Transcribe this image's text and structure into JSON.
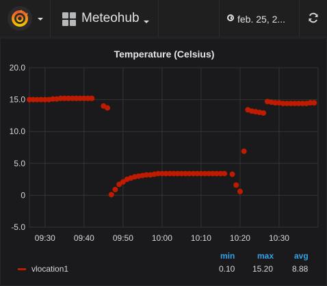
{
  "topbar": {
    "dashboard_title": "Meteohub",
    "time_range": "feb. 25, 2...",
    "icons": {
      "logo": "grafana-logo-icon",
      "dashboards": "grid-icon",
      "clock": "clock-icon",
      "refresh": "refresh-icon"
    }
  },
  "panel": {
    "title": "Temperature (Celsius)"
  },
  "chart_data": {
    "type": "scatter",
    "title": "Temperature (Celsius)",
    "xlabel": "",
    "ylabel": "",
    "x_ticks": [
      "09:30",
      "09:40",
      "09:50",
      "10:00",
      "10:10",
      "10:20",
      "10:30"
    ],
    "y_ticks": [
      "20.0",
      "15.0",
      "10.0",
      "5.0",
      "0",
      "-5.0"
    ],
    "ylim": [
      -5,
      20
    ],
    "xlim": [
      "09:26",
      "10:40"
    ],
    "grid": true,
    "legend_placement": "bottom-left",
    "series": [
      {
        "name": "vlocation1",
        "color": "#bf1b00",
        "points": [
          [
            "09:26",
            15.0
          ],
          [
            "09:27",
            15.0
          ],
          [
            "09:28",
            15.0
          ],
          [
            "09:29",
            15.0
          ],
          [
            "09:30",
            15.0
          ],
          [
            "09:31",
            15.0
          ],
          [
            "09:32",
            15.1
          ],
          [
            "09:33",
            15.1
          ],
          [
            "09:34",
            15.2
          ],
          [
            "09:35",
            15.2
          ],
          [
            "09:36",
            15.2
          ],
          [
            "09:37",
            15.2
          ],
          [
            "09:38",
            15.2
          ],
          [
            "09:39",
            15.2
          ],
          [
            "09:40",
            15.2
          ],
          [
            "09:41",
            15.2
          ],
          [
            "09:42",
            15.2
          ],
          [
            "09:45",
            14.0
          ],
          [
            "09:46",
            13.7
          ],
          [
            "09:47",
            0.1
          ],
          [
            "09:48",
            0.9
          ],
          [
            "09:49",
            1.7
          ],
          [
            "09:50",
            2.1
          ],
          [
            "09:51",
            2.5
          ],
          [
            "09:52",
            2.7
          ],
          [
            "09:53",
            2.9
          ],
          [
            "09:54",
            3.0
          ],
          [
            "09:55",
            3.1
          ],
          [
            "09:56",
            3.2
          ],
          [
            "09:57",
            3.2
          ],
          [
            "09:58",
            3.3
          ],
          [
            "09:59",
            3.4
          ],
          [
            "10:00",
            3.4
          ],
          [
            "10:01",
            3.4
          ],
          [
            "10:02",
            3.4
          ],
          [
            "10:03",
            3.4
          ],
          [
            "10:04",
            3.4
          ],
          [
            "10:05",
            3.4
          ],
          [
            "10:06",
            3.4
          ],
          [
            "10:07",
            3.4
          ],
          [
            "10:08",
            3.4
          ],
          [
            "10:09",
            3.4
          ],
          [
            "10:10",
            3.4
          ],
          [
            "10:11",
            3.4
          ],
          [
            "10:12",
            3.4
          ],
          [
            "10:13",
            3.4
          ],
          [
            "10:14",
            3.4
          ],
          [
            "10:15",
            3.4
          ],
          [
            "10:16",
            3.4
          ],
          [
            "10:18",
            3.3
          ],
          [
            "10:19",
            1.6
          ],
          [
            "10:20",
            0.6
          ],
          [
            "10:21",
            6.9
          ],
          [
            "10:22",
            13.4
          ],
          [
            "10:23",
            13.2
          ],
          [
            "10:24",
            13.1
          ],
          [
            "10:25",
            13.0
          ],
          [
            "10:26",
            12.9
          ],
          [
            "10:27",
            14.7
          ],
          [
            "10:28",
            14.6
          ],
          [
            "10:29",
            14.5
          ],
          [
            "10:30",
            14.5
          ],
          [
            "10:31",
            14.4
          ],
          [
            "10:32",
            14.4
          ],
          [
            "10:33",
            14.4
          ],
          [
            "10:34",
            14.4
          ],
          [
            "10:35",
            14.4
          ],
          [
            "10:36",
            14.4
          ],
          [
            "10:37",
            14.4
          ],
          [
            "10:38",
            14.5
          ],
          [
            "10:39",
            14.5
          ]
        ]
      }
    ]
  },
  "legend": {
    "series_name": "vlocation1",
    "headers": {
      "min": "min",
      "max": "max",
      "avg": "avg"
    },
    "values": {
      "min": "0.10",
      "max": "15.20",
      "avg": "8.88"
    }
  }
}
